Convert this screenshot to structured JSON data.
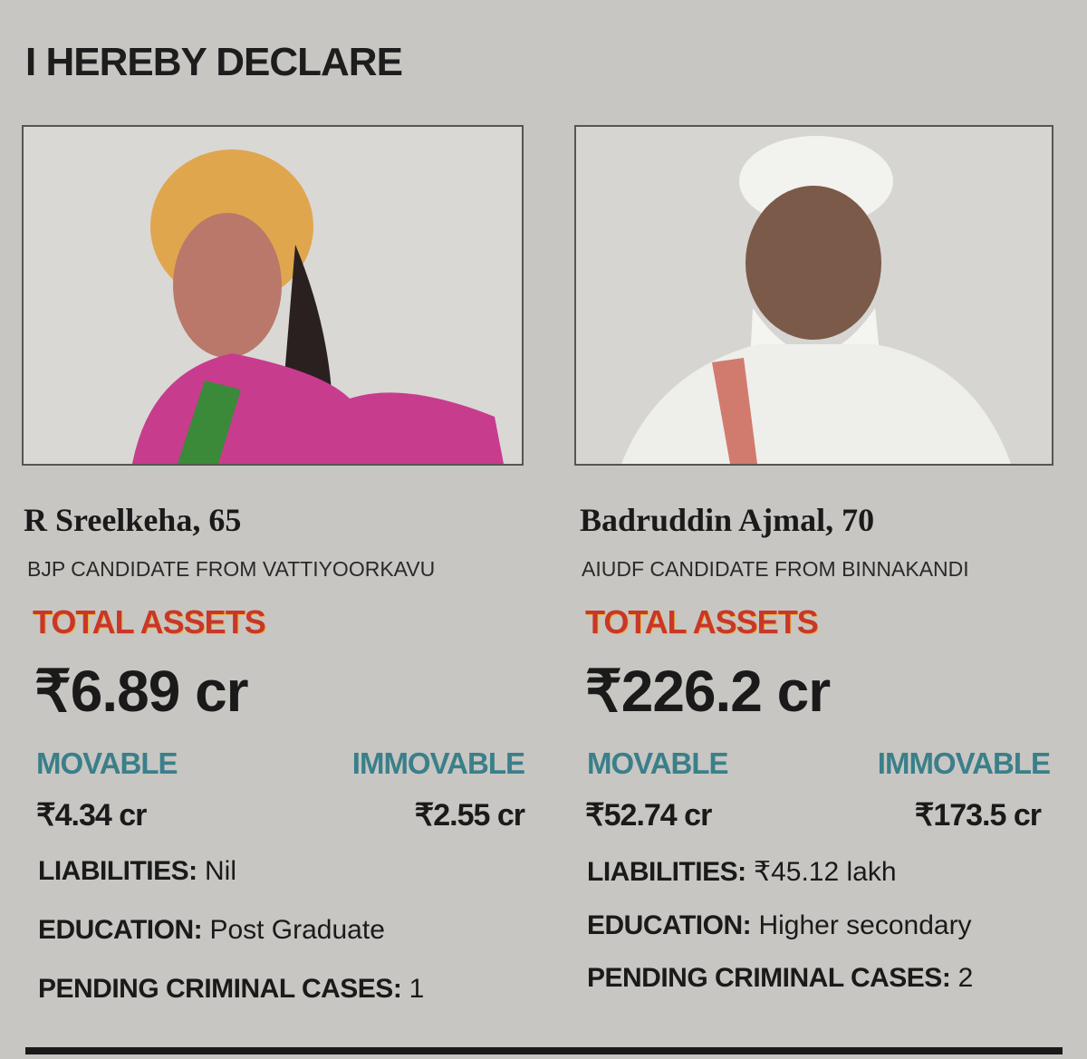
{
  "header": {
    "title": "I HEREBY DECLARE"
  },
  "candidates": [
    {
      "name": "R Sreelkeha, 65",
      "subtitle": "BJP CANDIDATE FROM VATTIYOORKAVU",
      "total_assets_label": "TOTAL ASSETS",
      "total_assets": "₹6.89 cr",
      "movable_label": "MOVABLE",
      "movable": "₹4.34 cr",
      "immovable_label": "IMMOVABLE",
      "immovable": "₹2.55 cr",
      "liabilities_label": "LIABILITIES:",
      "liabilities": "Nil",
      "education_label": "EDUCATION:",
      "education": "Post Graduate",
      "cases_label": "PENDING CRIMINAL CASES:",
      "cases": "1"
    },
    {
      "name": "Badruddin Ajmal, 70",
      "subtitle": "AIUDF CANDIDATE FROM BINNAKANDI",
      "total_assets_label": "TOTAL ASSETS",
      "total_assets": "₹226.2 cr",
      "movable_label": "MOVABLE",
      "movable": "₹52.74 cr",
      "immovable_label": "IMMOVABLE",
      "immovable": "₹173.5 cr",
      "liabilities_label": "LIABILITIES:",
      "liabilities": "₹45.12 lakh",
      "education_label": "EDUCATION:",
      "education": "Higher secondary",
      "cases_label": "PENDING CRIMINAL CASES:",
      "cases": "2"
    }
  ]
}
